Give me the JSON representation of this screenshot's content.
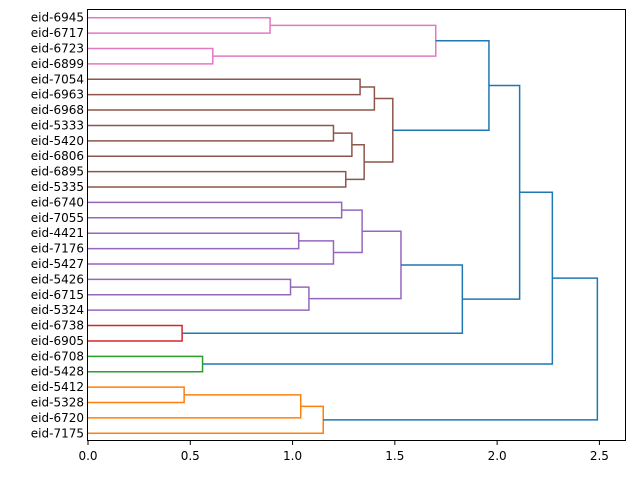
{
  "chart_data": {
    "type": "dendrogram",
    "orientation": "horizontal",
    "title": "",
    "xlabel": "",
    "ylabel": "",
    "xlim": [
      0,
      2.63
    ],
    "x_ticks": [
      0.0,
      0.5,
      1.0,
      1.5,
      2.0,
      2.5
    ],
    "x_tick_labels": [
      "0.0",
      "0.5",
      "1.0",
      "1.5",
      "2.0",
      "2.5"
    ],
    "grid": false,
    "leaves": [
      "eid-6945",
      "eid-6717",
      "eid-6723",
      "eid-6899",
      "eid-7054",
      "eid-6963",
      "eid-6968",
      "eid-5333",
      "eid-5420",
      "eid-6806",
      "eid-6895",
      "eid-5335",
      "eid-6740",
      "eid-7055",
      "eid-4421",
      "eid-7176",
      "eid-5427",
      "eid-5426",
      "eid-6715",
      "eid-5324",
      "eid-6738",
      "eid-6905",
      "eid-6708",
      "eid-5428",
      "eid-5412",
      "eid-5328",
      "eid-6720",
      "eid-7175"
    ],
    "colors": {
      "pink": "#e377c2",
      "brown": "#8c564b",
      "purple": "#9467bd",
      "red": "#d62728",
      "green": "#2ca02c",
      "orange": "#ff7f0e",
      "above": "#1f77b4"
    },
    "merges": [
      {
        "id": "m1",
        "a": "L0",
        "b": "L1",
        "height": 0.89,
        "color": "pink"
      },
      {
        "id": "m2",
        "a": "L2",
        "b": "L3",
        "height": 0.61,
        "color": "pink"
      },
      {
        "id": "m3",
        "a": "m1",
        "b": "m2",
        "height": 1.7,
        "color": "pink"
      },
      {
        "id": "m4",
        "a": "L4",
        "b": "L5",
        "height": 1.33,
        "color": "brown"
      },
      {
        "id": "m5",
        "a": "m4",
        "b": "L6",
        "height": 1.4,
        "color": "brown"
      },
      {
        "id": "m6",
        "a": "L7",
        "b": "L8",
        "height": 1.2,
        "color": "brown"
      },
      {
        "id": "m7",
        "a": "m6",
        "b": "L9",
        "height": 1.29,
        "color": "brown"
      },
      {
        "id": "m8",
        "a": "L10",
        "b": "L11",
        "height": 1.26,
        "color": "brown"
      },
      {
        "id": "m9",
        "a": "m7",
        "b": "m8",
        "height": 1.35,
        "color": "brown"
      },
      {
        "id": "m10",
        "a": "m5",
        "b": "m9",
        "height": 1.49,
        "color": "brown"
      },
      {
        "id": "m11",
        "a": "m3",
        "b": "m10",
        "height": 1.96,
        "color": "above"
      },
      {
        "id": "m12",
        "a": "L12",
        "b": "L13",
        "height": 1.24,
        "color": "purple"
      },
      {
        "id": "m13",
        "a": "L14",
        "b": "L15",
        "height": 1.03,
        "color": "purple"
      },
      {
        "id": "m14",
        "a": "m13",
        "b": "L16",
        "height": 1.2,
        "color": "purple"
      },
      {
        "id": "m15",
        "a": "m12",
        "b": "m14",
        "height": 1.34,
        "color": "purple"
      },
      {
        "id": "m16",
        "a": "L17",
        "b": "L18",
        "height": 0.99,
        "color": "purple"
      },
      {
        "id": "m17",
        "a": "m16",
        "b": "L19",
        "height": 1.08,
        "color": "purple"
      },
      {
        "id": "m18",
        "a": "m15",
        "b": "m17",
        "height": 1.53,
        "color": "purple"
      },
      {
        "id": "m19",
        "a": "L20",
        "b": "L21",
        "height": 0.46,
        "color": "red"
      },
      {
        "id": "m20",
        "a": "m18",
        "b": "m19",
        "height": 1.83,
        "color": "above"
      },
      {
        "id": "m21",
        "a": "m11",
        "b": "m20",
        "height": 2.11,
        "color": "above"
      },
      {
        "id": "m22",
        "a": "L22",
        "b": "L23",
        "height": 0.56,
        "color": "green"
      },
      {
        "id": "m23",
        "a": "m21",
        "b": "m22",
        "height": 2.27,
        "color": "above"
      },
      {
        "id": "m24",
        "a": "L24",
        "b": "L25",
        "height": 0.47,
        "color": "orange"
      },
      {
        "id": "m25",
        "a": "m24",
        "b": "L26",
        "height": 1.04,
        "color": "orange"
      },
      {
        "id": "m26",
        "a": "m25",
        "b": "L27",
        "height": 1.15,
        "color": "orange"
      },
      {
        "id": "m27",
        "a": "m23",
        "b": "m26",
        "height": 2.49,
        "color": "above"
      }
    ]
  }
}
